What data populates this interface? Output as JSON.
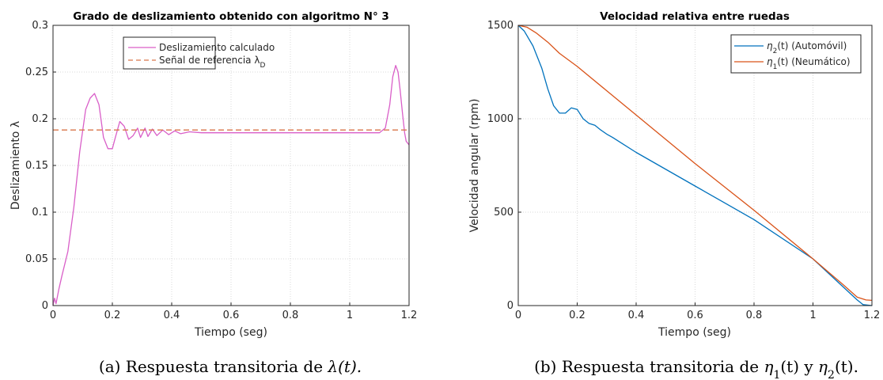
{
  "chart_data": [
    {
      "type": "line",
      "title": "Grado de deslizamiento obtenido con algoritmo N° 3",
      "xlabel": "Tiempo (seg)",
      "ylabel": "Deslizamiento λ",
      "xlim": [
        0,
        1.2
      ],
      "ylim": [
        0,
        0.3
      ],
      "xticks": [
        "0",
        "0.2",
        "0.4",
        "0.6",
        "0.8",
        "1",
        "1.2"
      ],
      "yticks": [
        "0",
        "0.05",
        "0.1",
        "0.15",
        "0.2",
        "0.25",
        "0.3"
      ],
      "grid": true,
      "legend_position": "top-right",
      "series": [
        {
          "name": "Deslizamiento calculado",
          "color": "#d95fc8",
          "style": "solid",
          "x": [
            0,
            0.005,
            0.01,
            0.02,
            0.03,
            0.05,
            0.07,
            0.09,
            0.11,
            0.125,
            0.14,
            0.155,
            0.17,
            0.185,
            0.2,
            0.21,
            0.225,
            0.24,
            0.255,
            0.27,
            0.285,
            0.295,
            0.31,
            0.32,
            0.335,
            0.35,
            0.37,
            0.39,
            0.41,
            0.43,
            0.46,
            0.5,
            0.6,
            0.8,
            1.0,
            1.1,
            1.12,
            1.135,
            1.145,
            1.155,
            1.163,
            1.17,
            1.178,
            1.185,
            1.19,
            1.2
          ],
          "y": [
            0,
            0.008,
            0.002,
            0.018,
            0.032,
            0.058,
            0.105,
            0.165,
            0.21,
            0.222,
            0.227,
            0.215,
            0.18,
            0.168,
            0.168,
            0.18,
            0.197,
            0.192,
            0.178,
            0.182,
            0.19,
            0.18,
            0.19,
            0.181,
            0.189,
            0.182,
            0.188,
            0.183,
            0.187,
            0.184,
            0.186,
            0.185,
            0.185,
            0.185,
            0.185,
            0.185,
            0.19,
            0.215,
            0.245,
            0.257,
            0.25,
            0.23,
            0.205,
            0.185,
            0.176,
            0.172
          ]
        },
        {
          "name": "Señal de referencia λ_D",
          "color": "#d9764a",
          "style": "dashed",
          "x": [
            0,
            1.2
          ],
          "y": [
            0.188,
            0.188
          ]
        }
      ]
    },
    {
      "type": "line",
      "title": "Velocidad relativa entre ruedas",
      "xlabel": "Tiempo (seg)",
      "ylabel": "Velocidad angular (rpm)",
      "xlim": [
        0,
        1.2
      ],
      "ylim": [
        0,
        1500
      ],
      "xticks": [
        "0",
        "0.2",
        "0.4",
        "0.6",
        "0.8",
        "1",
        "1.2"
      ],
      "yticks": [
        "0",
        "500",
        "1000",
        "1500"
      ],
      "grid": true,
      "legend_position": "top-right",
      "series": [
        {
          "name": "η2(t) (Automóvil)",
          "color": "#0072bd",
          "style": "solid",
          "x": [
            0,
            0.02,
            0.05,
            0.08,
            0.1,
            0.12,
            0.14,
            0.16,
            0.18,
            0.2,
            0.22,
            0.24,
            0.26,
            0.28,
            0.3,
            0.32,
            0.35,
            0.4,
            0.6,
            0.8,
            1.0,
            1.15,
            1.17,
            1.2
          ],
          "y": [
            1500,
            1470,
            1390,
            1270,
            1160,
            1070,
            1030,
            1030,
            1058,
            1050,
            1000,
            975,
            965,
            940,
            918,
            900,
            870,
            820,
            640,
            460,
            250,
            30,
            5,
            0
          ]
        },
        {
          "name": "η1(t) (Neumático)",
          "color": "#d95319",
          "style": "solid",
          "x": [
            0,
            0.03,
            0.06,
            0.1,
            0.14,
            0.2,
            0.3,
            0.4,
            0.6,
            0.8,
            1.0,
            1.1,
            1.15,
            1.18,
            1.2
          ],
          "y": [
            1500,
            1490,
            1460,
            1410,
            1350,
            1280,
            1150,
            1020,
            760,
            510,
            250,
            115,
            45,
            30,
            28
          ]
        }
      ]
    }
  ],
  "captions": {
    "a_prefix": "(a) Respuesta transitoria de ",
    "a_symbol": "λ(t).",
    "b_prefix": "(b) Respuesta transitoria de ",
    "b_sym1": "η",
    "b_sub1": "1",
    "b_mid": "(t) y ",
    "b_sym2": "η",
    "b_sub2": "2",
    "b_end": "(t)."
  }
}
